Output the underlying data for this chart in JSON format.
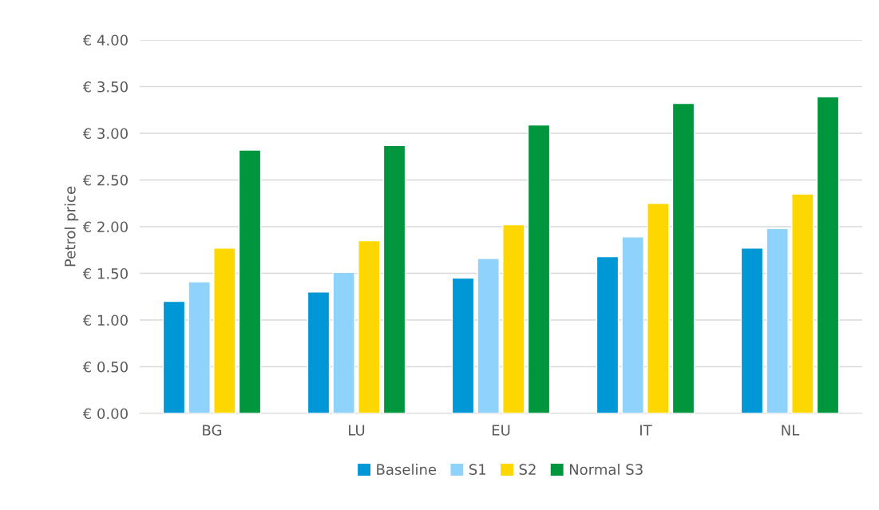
{
  "chart_data": {
    "type": "bar",
    "ylabel": "Petrol price",
    "categories": [
      "BG",
      "LU",
      "EU",
      "IT",
      "NL"
    ],
    "series": [
      {
        "name": "Baseline",
        "color": "#0097d7",
        "values": [
          1.2,
          1.3,
          1.45,
          1.68,
          1.77
        ]
      },
      {
        "name": "S1",
        "color": "#8fd3fc",
        "values": [
          1.41,
          1.51,
          1.66,
          1.89,
          1.98
        ]
      },
      {
        "name": "S2",
        "color": "#ffd700",
        "values": [
          1.77,
          1.85,
          2.02,
          2.25,
          2.35
        ]
      },
      {
        "name": "Normal S3",
        "color": "#00963e",
        "values": [
          2.82,
          2.87,
          3.09,
          3.32,
          3.39
        ]
      }
    ],
    "ylim": [
      0,
      4
    ],
    "yticks": [
      {
        "value": 0,
        "label": "€ 0.00"
      },
      {
        "value": 0.5,
        "label": "€ 0.50"
      },
      {
        "value": 1,
        "label": "€ 1.00"
      },
      {
        "value": 1.5,
        "label": "€ 1.50"
      },
      {
        "value": 2,
        "label": "€ 2.00"
      },
      {
        "value": 2.5,
        "label": "€ 2.50"
      },
      {
        "value": 3,
        "label": "€ 3.00"
      },
      {
        "value": 3.5,
        "label": "€ 3.50"
      },
      {
        "value": 4,
        "label": "€ 4.00"
      }
    ],
    "grid": "y",
    "legend": "bottom"
  }
}
